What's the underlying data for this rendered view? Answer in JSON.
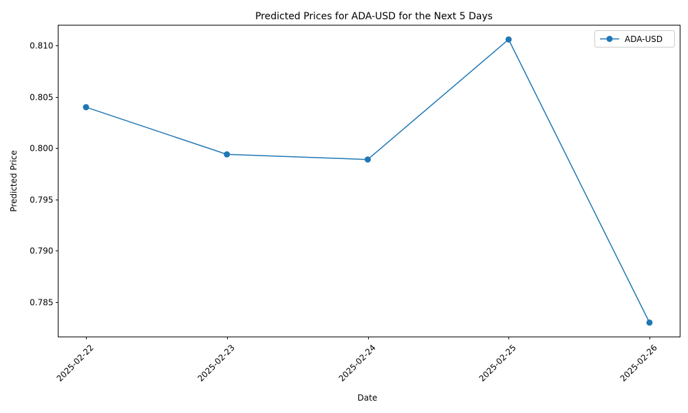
{
  "chart_data": {
    "type": "line",
    "title": "Predicted Prices for ADA-USD for the Next 5 Days",
    "xlabel": "Date",
    "ylabel": "Predicted Price",
    "categories": [
      "2025-02-22",
      "2025-02-23",
      "2025-02-24",
      "2025-02-25",
      "2025-02-26"
    ],
    "series": [
      {
        "name": "ADA-USD",
        "color": "#1f77b4",
        "marker": "circle",
        "values": [
          0.804,
          0.7994,
          0.7989,
          0.8106,
          0.783
        ]
      }
    ],
    "ylim": [
      0.7816,
      0.812
    ],
    "yticks": [
      0.785,
      0.79,
      0.795,
      0.8,
      0.805,
      0.81
    ],
    "ytick_labels": [
      "0.785",
      "0.790",
      "0.795",
      "0.800",
      "0.805",
      "0.810"
    ],
    "grid": false,
    "legend": "top-right",
    "xtick_rotation": 45
  }
}
